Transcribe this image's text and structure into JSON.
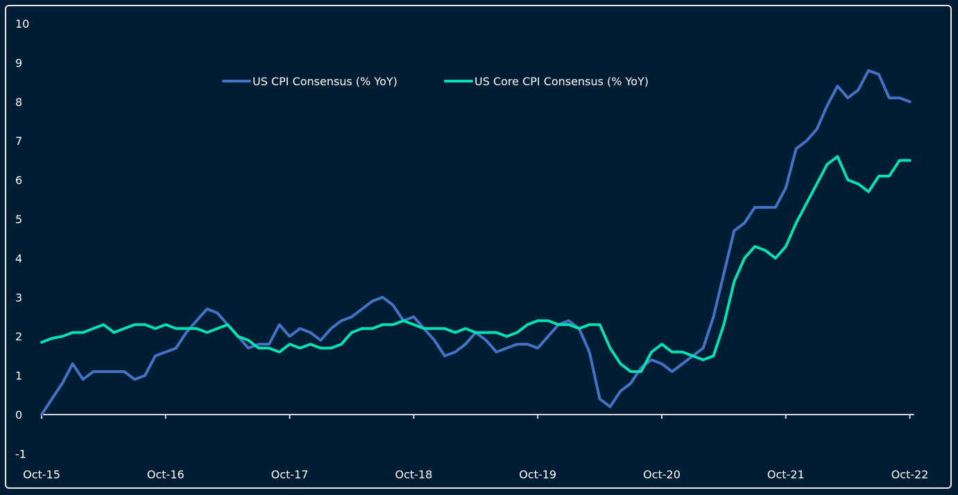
{
  "chart_data": {
    "type": "line",
    "title": "",
    "xlabel": "",
    "ylabel": "",
    "ylim": [
      -1,
      10
    ],
    "yticks": [
      "-1",
      "0",
      "1",
      "2",
      "3",
      "4",
      "5",
      "6",
      "7",
      "8",
      "9",
      "10"
    ],
    "xtick_labels": [
      "Oct-15",
      "Oct-16",
      "Oct-17",
      "Oct-18",
      "Oct-19",
      "Oct-20",
      "Oct-21",
      "Oct-22"
    ],
    "x_start": "Oct-15",
    "x_end": "Oct-22",
    "frequency": "monthly",
    "grid": false,
    "legend_position": "top",
    "series": [
      {
        "name": "US CPI Consensus (% YoY)",
        "color": "#4472c4",
        "values": [
          0.0,
          0.4,
          0.8,
          1.3,
          0.9,
          1.1,
          1.1,
          1.1,
          1.1,
          0.9,
          1.0,
          1.5,
          1.6,
          1.7,
          2.1,
          2.4,
          2.7,
          2.6,
          2.3,
          2.0,
          1.7,
          1.8,
          1.8,
          2.3,
          2.0,
          2.2,
          2.1,
          1.9,
          2.2,
          2.4,
          2.5,
          2.7,
          2.9,
          3.0,
          2.8,
          2.4,
          2.5,
          2.2,
          1.9,
          1.5,
          1.6,
          1.8,
          2.1,
          1.9,
          1.6,
          1.7,
          1.8,
          1.8,
          1.7,
          2.0,
          2.3,
          2.4,
          2.2,
          1.6,
          0.4,
          0.2,
          0.6,
          0.8,
          1.2,
          1.4,
          1.3,
          1.1,
          1.3,
          1.5,
          1.7,
          2.5,
          3.6,
          4.7,
          4.9,
          5.3,
          5.3,
          5.3,
          5.8,
          6.8,
          7.0,
          7.3,
          7.9,
          8.4,
          8.1,
          8.3,
          8.8,
          8.7,
          8.1,
          8.1,
          8.0
        ]
      },
      {
        "name": "US Core CPI Consensus (% YoY)",
        "color": "#00e0b0",
        "values": [
          1.85,
          1.95,
          2.0,
          2.1,
          2.1,
          2.2,
          2.3,
          2.1,
          2.2,
          2.3,
          2.3,
          2.2,
          2.3,
          2.2,
          2.2,
          2.2,
          2.1,
          2.2,
          2.3,
          2.0,
          1.9,
          1.7,
          1.7,
          1.6,
          1.8,
          1.7,
          1.8,
          1.7,
          1.7,
          1.8,
          2.1,
          2.2,
          2.2,
          2.3,
          2.3,
          2.4,
          2.3,
          2.2,
          2.2,
          2.2,
          2.1,
          2.2,
          2.1,
          2.1,
          2.1,
          2.0,
          2.1,
          2.3,
          2.4,
          2.4,
          2.3,
          2.3,
          2.2,
          2.3,
          2.3,
          1.7,
          1.3,
          1.1,
          1.1,
          1.6,
          1.8,
          1.6,
          1.6,
          1.5,
          1.4,
          1.5,
          2.3,
          3.4,
          4.0,
          4.3,
          4.2,
          4.0,
          4.3,
          4.9,
          5.4,
          5.9,
          6.4,
          6.6,
          6.0,
          5.9,
          5.7,
          6.1,
          6.1,
          6.5,
          6.5
        ]
      }
    ]
  }
}
